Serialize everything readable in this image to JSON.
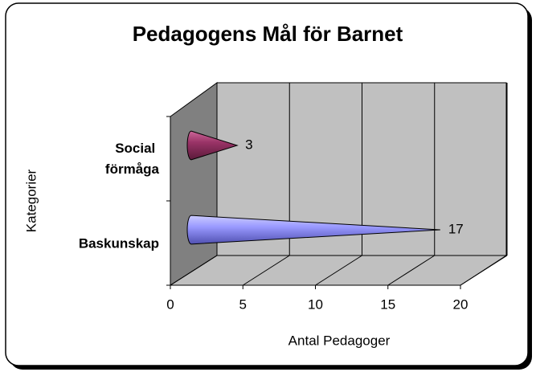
{
  "chart_data": {
    "type": "cone-bar",
    "title": "Pedagogens Mål för Barnet",
    "categories": [
      "Baskunskap",
      "Social förmåga"
    ],
    "values": [
      17,
      3
    ],
    "colors": [
      "#9999ff",
      "#993366"
    ],
    "xlim": [
      0,
      20
    ],
    "xticks": [
      0,
      5,
      10,
      15,
      20
    ],
    "x_label": "Antal Pedagoger",
    "y_label": "Kategorier",
    "grid": true
  }
}
